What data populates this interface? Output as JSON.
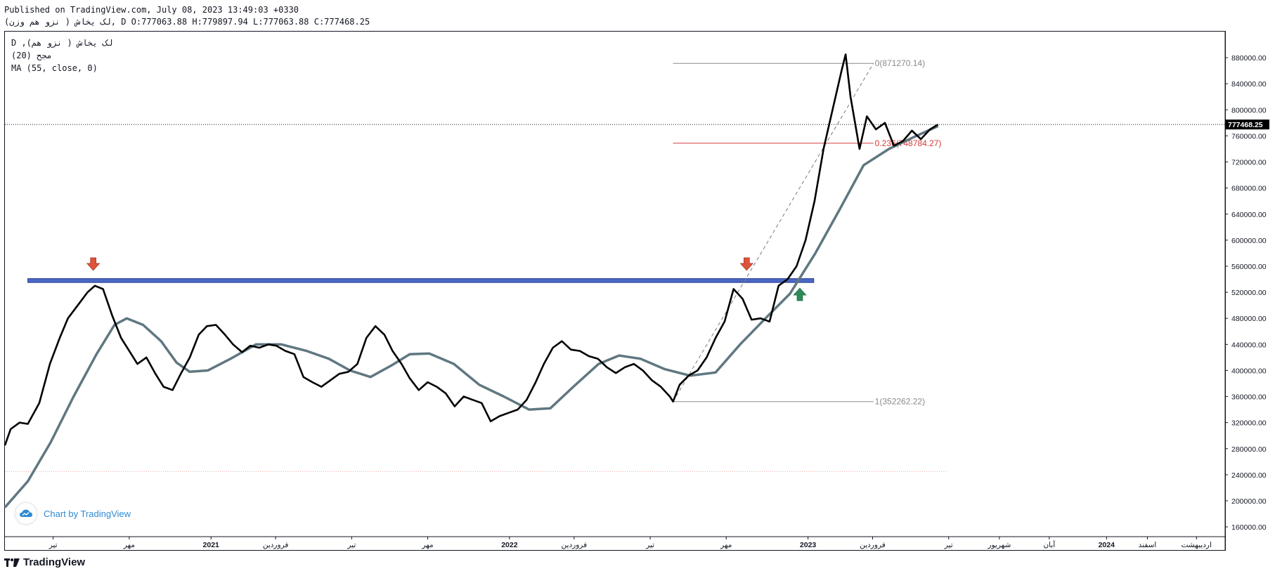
{
  "header": {
    "published_line": "Published on TradingView.com, July 08, 2023 13:49:03 +0330",
    "symbol_line": "(نزو هم وزن ) لک یخاش, D O:777063.88 H:779897.94 L:777063.88 C:777468.25"
  },
  "legend": {
    "line1": "D ,(نزو هم ) لک یخاش",
    "line2": "(20) مجح",
    "line3": "MA (55, close, 0)"
  },
  "watermark": {
    "chart_by": "Chart by TradingView"
  },
  "footer": {
    "brand": "TradingView"
  },
  "colors": {
    "price_line": "#000000",
    "ma_line": "#5f7780",
    "resistance_band": "#4a67c7",
    "fib_neutral": "#8a8a8a",
    "fib_red": "#d63a3a",
    "down_arrow": "#e0523a",
    "up_arrow": "#2e8b57"
  },
  "chart_data": {
    "type": "line",
    "title": "",
    "ylim": [
      145000,
      920000
    ],
    "last_price": 777468.25,
    "last_price_label": "777468.25",
    "y_ticks": [
      160000,
      200000,
      240000,
      280000,
      320000,
      360000,
      400000,
      440000,
      480000,
      520000,
      560000,
      600000,
      640000,
      680000,
      720000,
      760000,
      800000,
      840000,
      880000
    ],
    "y_tick_labels": [
      "160000.00",
      "200000.00",
      "240000.00",
      "280000.00",
      "320000.00",
      "360000.00",
      "400000.00",
      "440000.00",
      "480000.00",
      "520000.00",
      "560000.00",
      "600000.00",
      "640000.00",
      "680000.00",
      "720000.00",
      "760000.00",
      "800000.00",
      "840000.00",
      "880000.00"
    ],
    "x_tick_labels": [
      "تیر",
      "مهر",
      "2021",
      "فروردین",
      "تیر",
      "مهر",
      "2022",
      "فروردین",
      "تیر",
      "مهر",
      "2023",
      "فروردین",
      "تیر",
      "شهریور",
      "آبان",
      "2024",
      "اسفند",
      "اردیبهشت"
    ],
    "x_tick_dates": [
      "2020-06-22",
      "2020-09-23",
      "2021-01-01",
      "2021-03-21",
      "2021-06-22",
      "2021-09-23",
      "2022-01-01",
      "2022-03-21",
      "2022-06-22",
      "2022-09-23",
      "2023-01-01",
      "2023-03-21",
      "2023-06-22",
      "2023-08-23",
      "2023-10-23",
      "2024-01-01",
      "2024-02-20",
      "2024-04-20"
    ],
    "series": [
      {
        "values": [
          [
            "2020-04-24",
            285000
          ],
          [
            "2020-05-01",
            310000
          ],
          [
            "2020-05-12",
            320000
          ],
          [
            "2020-05-22",
            318000
          ],
          [
            "2020-06-05",
            350000
          ],
          [
            "2020-06-18",
            410000
          ],
          [
            "2020-06-30",
            450000
          ],
          [
            "2020-07-10",
            480000
          ],
          [
            "2020-07-22",
            500000
          ],
          [
            "2020-08-03",
            520000
          ],
          [
            "2020-08-12",
            530000
          ],
          [
            "2020-08-22",
            525000
          ],
          [
            "2020-09-02",
            485000
          ],
          [
            "2020-09-13",
            450000
          ],
          [
            "2020-09-23",
            430000
          ],
          [
            "2020-10-03",
            410000
          ],
          [
            "2020-10-14",
            420000
          ],
          [
            "2020-10-25",
            395000
          ],
          [
            "2020-11-04",
            375000
          ],
          [
            "2020-11-15",
            370000
          ],
          [
            "2020-11-25",
            395000
          ],
          [
            "2020-12-06",
            420000
          ],
          [
            "2020-12-17",
            455000
          ],
          [
            "2020-12-27",
            468000
          ],
          [
            "2021-01-07",
            470000
          ],
          [
            "2021-01-18",
            455000
          ],
          [
            "2021-01-28",
            440000
          ],
          [
            "2021-02-08",
            428000
          ],
          [
            "2021-02-18",
            438000
          ],
          [
            "2021-03-01",
            435000
          ],
          [
            "2021-03-12",
            440000
          ],
          [
            "2021-03-22",
            438000
          ],
          [
            "2021-04-02",
            430000
          ],
          [
            "2021-04-13",
            425000
          ],
          [
            "2021-04-24",
            390000
          ],
          [
            "2021-05-05",
            382000
          ],
          [
            "2021-05-16",
            375000
          ],
          [
            "2021-05-27",
            385000
          ],
          [
            "2021-06-07",
            395000
          ],
          [
            "2021-06-18",
            398000
          ],
          [
            "2021-06-29",
            410000
          ],
          [
            "2021-07-10",
            450000
          ],
          [
            "2021-07-21",
            468000
          ],
          [
            "2021-08-01",
            455000
          ],
          [
            "2021-08-11",
            430000
          ],
          [
            "2021-08-22",
            410000
          ],
          [
            "2021-09-01",
            388000
          ],
          [
            "2021-09-12",
            370000
          ],
          [
            "2021-09-23",
            382000
          ],
          [
            "2021-10-04",
            375000
          ],
          [
            "2021-10-15",
            365000
          ],
          [
            "2021-10-26",
            345000
          ],
          [
            "2021-11-06",
            360000
          ],
          [
            "2021-11-17",
            355000
          ],
          [
            "2021-11-28",
            350000
          ],
          [
            "2021-12-09",
            322000
          ],
          [
            "2021-12-20",
            330000
          ],
          [
            "2021-12-31",
            335000
          ],
          [
            "2022-01-11",
            340000
          ],
          [
            "2022-01-22",
            355000
          ],
          [
            "2022-02-02",
            382000
          ],
          [
            "2022-02-12",
            410000
          ],
          [
            "2022-02-23",
            435000
          ],
          [
            "2022-03-06",
            445000
          ],
          [
            "2022-03-17",
            432000
          ],
          [
            "2022-03-28",
            430000
          ],
          [
            "2022-04-08",
            422000
          ],
          [
            "2022-04-19",
            418000
          ],
          [
            "2022-04-30",
            405000
          ],
          [
            "2022-05-11",
            396000
          ],
          [
            "2022-05-22",
            405000
          ],
          [
            "2022-06-02",
            410000
          ],
          [
            "2022-06-13",
            400000
          ],
          [
            "2022-06-24",
            385000
          ],
          [
            "2022-07-05",
            375000
          ],
          [
            "2022-07-16",
            360000
          ],
          [
            "2022-07-20",
            352262
          ],
          [
            "2022-07-28",
            378000
          ],
          [
            "2022-08-08",
            392000
          ],
          [
            "2022-08-19",
            400000
          ],
          [
            "2022-08-30",
            420000
          ],
          [
            "2022-09-10",
            450000
          ],
          [
            "2022-09-21",
            475000
          ],
          [
            "2022-10-02",
            525000
          ],
          [
            "2022-10-13",
            510000
          ],
          [
            "2022-10-24",
            478000
          ],
          [
            "2022-11-04",
            480000
          ],
          [
            "2022-11-15",
            475000
          ],
          [
            "2022-11-26",
            530000
          ],
          [
            "2022-12-07",
            540000
          ],
          [
            "2022-12-18",
            560000
          ],
          [
            "2022-12-29",
            600000
          ],
          [
            "2023-01-09",
            660000
          ],
          [
            "2023-01-20",
            740000
          ],
          [
            "2023-01-31",
            800000
          ],
          [
            "2023-02-11",
            860000
          ],
          [
            "2023-02-16",
            885000
          ],
          [
            "2023-02-22",
            820000
          ],
          [
            "2023-03-05",
            740000
          ],
          [
            "2023-03-14",
            790000
          ],
          [
            "2023-03-25",
            770000
          ],
          [
            "2023-04-05",
            780000
          ],
          [
            "2023-04-16",
            745000
          ],
          [
            "2023-04-27",
            752000
          ],
          [
            "2023-05-08",
            768000
          ],
          [
            "2023-05-19",
            755000
          ],
          [
            "2023-05-30",
            770000
          ],
          [
            "2023-06-09",
            777468.25
          ]
        ]
      },
      {
        "name": "MA (55, close, 0)",
        "values": [
          [
            "2020-04-24",
            190000
          ],
          [
            "2020-05-22",
            230000
          ],
          [
            "2020-06-19",
            290000
          ],
          [
            "2020-07-17",
            360000
          ],
          [
            "2020-08-14",
            425000
          ],
          [
            "2020-09-05",
            470000
          ],
          [
            "2020-09-20",
            480000
          ],
          [
            "2020-10-10",
            470000
          ],
          [
            "2020-11-01",
            445000
          ],
          [
            "2020-11-20",
            412000
          ],
          [
            "2020-12-06",
            398000
          ],
          [
            "2020-12-28",
            400000
          ],
          [
            "2021-01-25",
            418000
          ],
          [
            "2021-02-25",
            440000
          ],
          [
            "2021-03-28",
            440000
          ],
          [
            "2021-04-28",
            430000
          ],
          [
            "2021-05-25",
            418000
          ],
          [
            "2021-06-20",
            400000
          ],
          [
            "2021-07-15",
            390000
          ],
          [
            "2021-08-10",
            408000
          ],
          [
            "2021-09-01",
            425000
          ],
          [
            "2021-09-25",
            426000
          ],
          [
            "2021-10-25",
            410000
          ],
          [
            "2021-11-25",
            378000
          ],
          [
            "2021-12-25",
            360000
          ],
          [
            "2022-01-25",
            340000
          ],
          [
            "2022-02-20",
            342000
          ],
          [
            "2022-03-20",
            375000
          ],
          [
            "2022-04-20",
            410000
          ],
          [
            "2022-05-15",
            423000
          ],
          [
            "2022-06-10",
            418000
          ],
          [
            "2022-07-10",
            402000
          ],
          [
            "2022-08-10",
            392000
          ],
          [
            "2022-09-10",
            397000
          ],
          [
            "2022-10-10",
            440000
          ],
          [
            "2022-11-10",
            480000
          ],
          [
            "2022-12-10",
            518000
          ],
          [
            "2023-01-10",
            580000
          ],
          [
            "2023-02-10",
            650000
          ],
          [
            "2023-03-10",
            715000
          ],
          [
            "2023-04-10",
            740000
          ],
          [
            "2023-05-10",
            758000
          ],
          [
            "2023-06-09",
            775000
          ]
        ]
      }
    ],
    "resistance_zone": {
      "from": "2020-05-22",
      "to": "2023-01-08",
      "low": 535000,
      "high": 541000
    },
    "arrows": [
      {
        "type": "down",
        "date": "2020-08-10",
        "value": 560000
      },
      {
        "type": "down",
        "date": "2022-10-18",
        "value": 560000
      },
      {
        "type": "up",
        "date": "2022-12-22",
        "value": 520000
      }
    ],
    "fibonacci": {
      "from": "2022-07-20",
      "to": "2023-03-22",
      "levels": [
        {
          "label": "0(871270.14)",
          "value": 871270.14,
          "color": "#8a8a8a"
        },
        {
          "label": "0.236(748784.27)",
          "value": 748784.27,
          "color": "#d63a3a"
        },
        {
          "label": "1(352262.22)",
          "value": 352262.22,
          "color": "#8a8a8a"
        }
      ]
    },
    "trendline": {
      "from": [
        "2022-07-20",
        352262.22
      ],
      "to": [
        "2023-03-22",
        871270.14
      ]
    },
    "dotted_level": {
      "value": 245000,
      "from": "2020-04-24",
      "to": "2023-06-20"
    }
  }
}
